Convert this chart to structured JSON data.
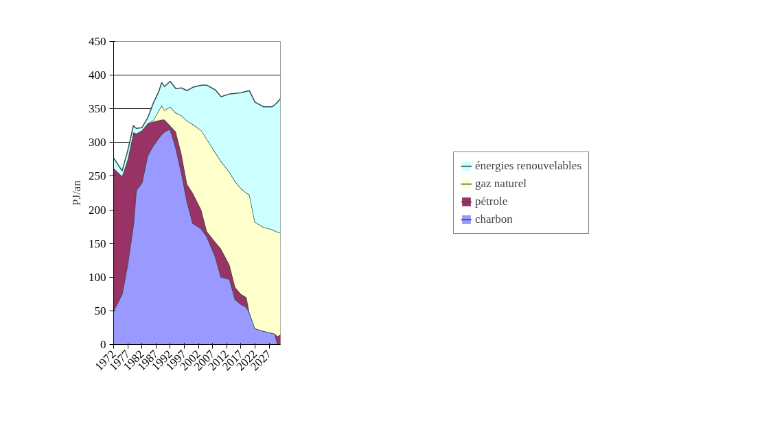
{
  "chart_data": {
    "type": "area",
    "stacked": true,
    "ylabel": "PJ/an",
    "x": [
      1972,
      1975,
      1977,
      1979,
      1980,
      1982,
      1984,
      1986,
      1988,
      1989,
      1990,
      1992,
      1994,
      1996,
      1998,
      2000,
      2003,
      2005,
      2008,
      2010,
      2013,
      2015,
      2017,
      2019,
      2020,
      2022,
      2025,
      2028,
      2029,
      2030,
      2031
    ],
    "series": [
      {
        "name": "charbon",
        "color": "#9999ff",
        "values": [
          50,
          75,
          120,
          178,
          229,
          240,
          280,
          295,
          307,
          312,
          316,
          320,
          292,
          255,
          212,
          180,
          172,
          160,
          130,
          100,
          97,
          67,
          60,
          55,
          48,
          24,
          20,
          17,
          16,
          0,
          0
        ]
      },
      {
        "name": "pétrole",
        "color": "#993366",
        "values": [
          212,
          175,
          155,
          137,
          84,
          78,
          48,
          36,
          26,
          22,
          18,
          5,
          24,
          28,
          26,
          45,
          28,
          8,
          22,
          42,
          21,
          18,
          15,
          15,
          0,
          0,
          0,
          0,
          0,
          12,
          15
        ]
      },
      {
        "name": "gaz naturel",
        "color": "#ffffcc",
        "values": [
          0,
          0,
          0,
          0,
          0,
          0,
          0,
          2,
          15,
          21,
          14,
          28,
          28,
          57,
          94,
          102,
          118,
          137,
          133,
          130,
          138,
          157,
          157,
          155,
          175,
          158,
          154,
          154,
          153,
          155,
          151
        ]
      },
      {
        "name": "énergies renouvelables",
        "color": "#ccffff",
        "values": [
          15,
          8,
          13,
          10,
          8,
          4,
          8,
          25,
          28,
          34,
          35,
          38,
          36,
          41,
          45,
          55,
          67,
          80,
          93,
          96,
          116,
          131,
          142,
          151,
          154,
          178,
          179,
          182,
          187,
          193,
          199
        ]
      }
    ],
    "xlim": [
      1972,
      2031
    ],
    "xticks": [
      1972,
      1977,
      1982,
      1987,
      1992,
      1997,
      2002,
      2007,
      2012,
      2017,
      2022,
      2027
    ],
    "ylim": [
      0,
      450
    ],
    "yticks": [
      0,
      50,
      100,
      150,
      200,
      250,
      300,
      350,
      400,
      450
    ],
    "grid": "y",
    "legend": "right"
  }
}
